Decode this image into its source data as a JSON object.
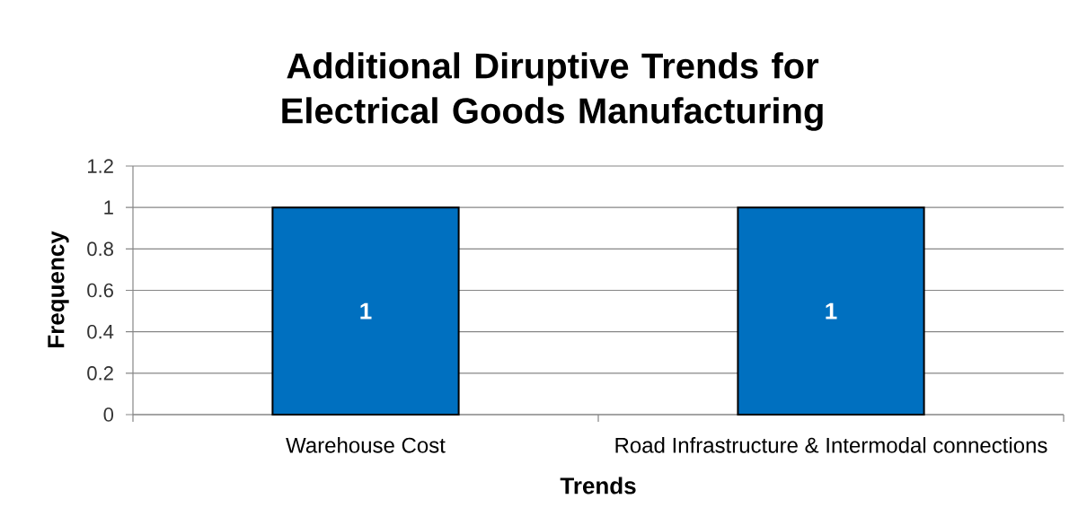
{
  "chart_data": {
    "type": "bar",
    "title": "Additional Diruptive Trends for Electrical Goods Manufacturing",
    "xlabel": "Trends",
    "ylabel": "Frequency",
    "categories": [
      "Warehouse Cost",
      "Road Infrastructure & Intermodal connections"
    ],
    "values": [
      1,
      1
    ],
    "color": "#0070c0",
    "ylim": [
      0,
      1.2
    ],
    "yticks": [
      0,
      0.2,
      0.4,
      0.6,
      0.8,
      1,
      1.2
    ],
    "grid": "y",
    "data_labels": true
  }
}
